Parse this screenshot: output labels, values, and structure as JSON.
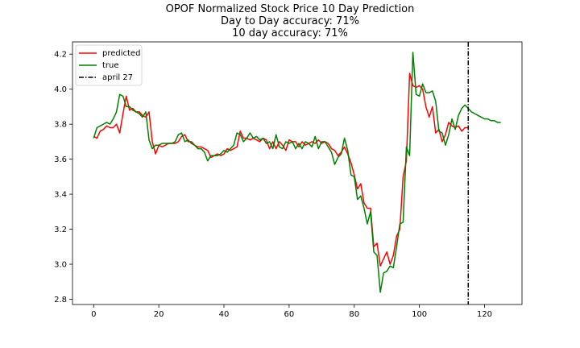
{
  "chart_data": {
    "type": "line",
    "title_lines": [
      "OPOF Normalized Stock Price 10 Day Prediction",
      "Day to Day accuracy: 71%",
      "10 day accuracy: 71%"
    ],
    "xlabel": "",
    "ylabel": "",
    "xlim": [
      -6.5,
      131.5
    ],
    "ylim": [
      2.77,
      4.27
    ],
    "x_ticks": [
      0,
      20,
      40,
      60,
      80,
      100,
      120
    ],
    "y_ticks": [
      2.8,
      3.0,
      3.2,
      3.4,
      3.6,
      3.8,
      4.0,
      4.2
    ],
    "x_tick_labels": [
      "0",
      "20",
      "40",
      "60",
      "80",
      "100",
      "120"
    ],
    "y_tick_labels": [
      "2.8",
      "3.0",
      "3.2",
      "3.4",
      "3.6",
      "3.8",
      "4.0",
      "4.2"
    ],
    "grid": false,
    "legend_position": "top-left",
    "series": [
      {
        "name": "predicted",
        "color": "#ff0000",
        "style": "solid",
        "x": [
          0,
          1,
          2,
          3,
          4,
          5,
          6,
          7,
          8,
          9,
          10,
          11,
          12,
          13,
          14,
          15,
          16,
          17,
          18,
          19,
          20,
          21,
          22,
          23,
          24,
          25,
          26,
          27,
          28,
          29,
          30,
          31,
          32,
          33,
          34,
          35,
          36,
          37,
          38,
          39,
          40,
          41,
          42,
          43,
          44,
          45,
          46,
          47,
          48,
          49,
          50,
          51,
          52,
          53,
          54,
          55,
          56,
          57,
          58,
          59,
          60,
          61,
          62,
          63,
          64,
          65,
          66,
          67,
          68,
          69,
          70,
          71,
          72,
          73,
          74,
          75,
          76,
          77,
          78,
          79,
          80,
          81,
          82,
          83,
          84,
          85,
          86,
          87,
          88,
          89,
          90,
          91,
          92,
          93,
          94,
          95,
          96,
          97,
          98,
          99,
          100,
          101,
          102,
          103,
          104,
          105,
          106,
          107,
          108,
          109,
          110,
          111,
          112,
          113,
          114,
          115
        ],
        "y": [
          3.73,
          3.72,
          3.76,
          3.77,
          3.79,
          3.78,
          3.78,
          3.8,
          3.75,
          3.86,
          3.96,
          3.88,
          3.89,
          3.87,
          3.87,
          3.85,
          3.84,
          3.87,
          3.7,
          3.63,
          3.68,
          3.67,
          3.68,
          3.69,
          3.69,
          3.69,
          3.7,
          3.73,
          3.74,
          3.7,
          3.7,
          3.68,
          3.67,
          3.67,
          3.66,
          3.65,
          3.61,
          3.62,
          3.63,
          3.62,
          3.63,
          3.66,
          3.65,
          3.66,
          3.67,
          3.76,
          3.72,
          3.72,
          3.71,
          3.72,
          3.71,
          3.7,
          3.72,
          3.71,
          3.66,
          3.7,
          3.66,
          3.7,
          3.68,
          3.65,
          3.71,
          3.7,
          3.7,
          3.67,
          3.7,
          3.68,
          3.69,
          3.7,
          3.69,
          3.71,
          3.69,
          3.7,
          3.69,
          3.66,
          3.65,
          3.62,
          3.64,
          3.67,
          3.63,
          3.58,
          3.51,
          3.43,
          3.46,
          3.35,
          3.32,
          3.32,
          3.1,
          3.12,
          2.99,
          3.03,
          3.07,
          3.0,
          3.05,
          3.16,
          3.2,
          3.5,
          3.59,
          4.09,
          4.02,
          4.01,
          4.02,
          4.0,
          3.9,
          3.84,
          3.9,
          3.75,
          3.77,
          3.7,
          3.74,
          3.81,
          3.79,
          3.78,
          3.79,
          3.76,
          3.78,
          3.78
        ],
        "color_name": "red"
      },
      {
        "name": "true",
        "color": "#008000",
        "style": "solid",
        "x": [
          0,
          1,
          2,
          3,
          4,
          5,
          6,
          7,
          8,
          9,
          10,
          11,
          12,
          13,
          14,
          15,
          16,
          17,
          18,
          19,
          20,
          21,
          22,
          23,
          24,
          25,
          26,
          27,
          28,
          29,
          30,
          31,
          32,
          33,
          34,
          35,
          36,
          37,
          38,
          39,
          40,
          41,
          42,
          43,
          44,
          45,
          46,
          47,
          48,
          49,
          50,
          51,
          52,
          53,
          54,
          55,
          56,
          57,
          58,
          59,
          60,
          61,
          62,
          63,
          64,
          65,
          66,
          67,
          68,
          69,
          70,
          71,
          72,
          73,
          74,
          75,
          76,
          77,
          78,
          79,
          80,
          81,
          82,
          83,
          84,
          85,
          86,
          87,
          88,
          89,
          90,
          91,
          92,
          93,
          94,
          95,
          96,
          97,
          98,
          99,
          100,
          101,
          102,
          103,
          104,
          105,
          106,
          107,
          108,
          109,
          110,
          111,
          112,
          113,
          114,
          115,
          116,
          117,
          118,
          119,
          120,
          121,
          122,
          123,
          124,
          125
        ],
        "y": [
          3.72,
          3.78,
          3.79,
          3.8,
          3.81,
          3.8,
          3.83,
          3.87,
          3.97,
          3.96,
          3.9,
          3.9,
          3.88,
          3.87,
          3.86,
          3.84,
          3.87,
          3.71,
          3.66,
          3.68,
          3.68,
          3.69,
          3.69,
          3.69,
          3.69,
          3.7,
          3.74,
          3.75,
          3.7,
          3.71,
          3.69,
          3.68,
          3.66,
          3.66,
          3.64,
          3.59,
          3.62,
          3.62,
          3.62,
          3.63,
          3.65,
          3.64,
          3.66,
          3.68,
          3.75,
          3.74,
          3.7,
          3.72,
          3.75,
          3.72,
          3.73,
          3.71,
          3.72,
          3.69,
          3.7,
          3.66,
          3.74,
          3.67,
          3.66,
          3.7,
          3.69,
          3.7,
          3.66,
          3.69,
          3.66,
          3.7,
          3.69,
          3.67,
          3.73,
          3.66,
          3.7,
          3.7,
          3.67,
          3.64,
          3.57,
          3.61,
          3.63,
          3.72,
          3.65,
          3.51,
          3.5,
          3.37,
          3.39,
          3.32,
          3.23,
          3.3,
          3.07,
          3.05,
          2.84,
          2.95,
          2.96,
          2.99,
          2.98,
          3.1,
          3.23,
          3.24,
          3.67,
          3.62,
          4.21,
          3.97,
          3.96,
          4.03,
          3.98,
          3.98,
          3.99,
          3.93,
          3.76,
          3.75,
          3.68,
          3.74,
          3.83,
          3.77,
          3.85,
          3.89,
          3.91,
          3.89,
          3.87,
          3.86,
          3.85,
          3.84,
          3.83,
          3.83,
          3.82,
          3.82,
          3.81,
          3.81
        ]
      }
    ],
    "vline": {
      "name": "april 27",
      "x": 115,
      "color": "#000000",
      "style": "dash-dot"
    },
    "legend_entries": [
      "predicted",
      "true",
      "april 27"
    ]
  }
}
